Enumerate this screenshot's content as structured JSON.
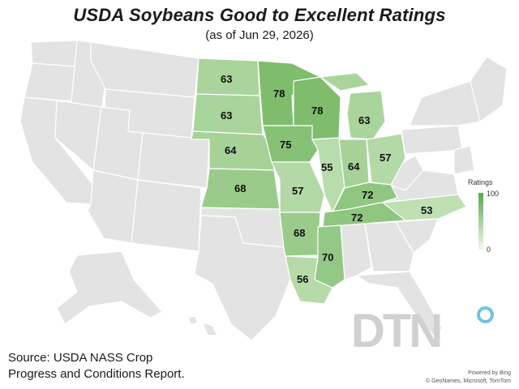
{
  "header": {
    "title": "USDA Soybeans Good to Excellent Ratings",
    "subtitle": "(as of Jun 29, 2026)"
  },
  "legend": {
    "title": "Ratings",
    "max_label": "100",
    "min_label": "0",
    "min_color": "#f2f8ef",
    "max_color": "#5aa84a"
  },
  "source": {
    "line1": "Source: USDA NASS Crop",
    "line2": "Progress and Conditions Report."
  },
  "logo": {
    "text": "DTN"
  },
  "credits": {
    "line1": "Powered by Bing",
    "line2": "© GeoNames, Microsoft, TomTom"
  },
  "colors": {
    "no_data": "#e3e3e3",
    "border": "#ffffff"
  },
  "ratings": [
    {
      "state": "North Dakota",
      "value": "63"
    },
    {
      "state": "South Dakota",
      "value": "63"
    },
    {
      "state": "Nebraska",
      "value": "64"
    },
    {
      "state": "Kansas",
      "value": "68"
    },
    {
      "state": "Minnesota",
      "value": "78"
    },
    {
      "state": "Iowa",
      "value": "75"
    },
    {
      "state": "Missouri",
      "value": "57"
    },
    {
      "state": "Arkansas",
      "value": "68"
    },
    {
      "state": "Louisiana",
      "value": "56"
    },
    {
      "state": "Wisconsin",
      "value": "78"
    },
    {
      "state": "Illinois",
      "value": "55"
    },
    {
      "state": "Michigan",
      "value": "63"
    },
    {
      "state": "Indiana",
      "value": "64"
    },
    {
      "state": "Ohio",
      "value": "57"
    },
    {
      "state": "Kentucky",
      "value": "72"
    },
    {
      "state": "Tennessee",
      "value": "72"
    },
    {
      "state": "Mississippi",
      "value": "70"
    },
    {
      "state": "North Carolina",
      "value": "53"
    }
  ]
}
